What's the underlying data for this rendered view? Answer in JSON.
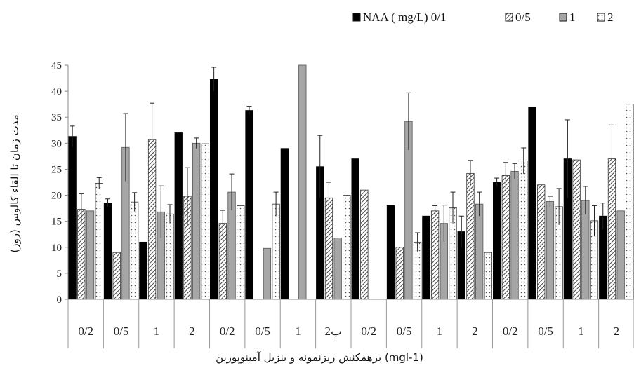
{
  "chart_data": {
    "type": "bar",
    "title": "",
    "ylabel": "مدت زمان تا القاء کالوس (روز)",
    "xlabel": "برهمکنش ریزنمونه و بنزیل آمینوپورین (mgl-1)",
    "ylim": [
      0,
      45
    ],
    "yticks": [
      "0",
      "5",
      "10",
      "15",
      "20",
      "25",
      "30",
      "35",
      "40",
      "45"
    ],
    "categories": [
      "0/2",
      "0/5",
      "1",
      "2",
      "0/2",
      "0/5",
      "1",
      "2ب",
      "0/2",
      "0/5",
      "1",
      "2",
      "0/2",
      "0/5",
      "1",
      "2"
    ],
    "legend_placement": "top-right",
    "legend_title": "NAA ( mg/L)",
    "series": [
      {
        "name": "0/1",
        "values": [
          31.3,
          18.5,
          11,
          32,
          42.3,
          36.3,
          29,
          25.5,
          27,
          18,
          16,
          13,
          22.5,
          37,
          27,
          16
        ]
      },
      {
        "name": "0/5",
        "values": [
          17.3,
          9,
          30.7,
          19.8,
          14.6,
          0,
          0,
          19.5,
          21,
          10,
          17,
          24.2,
          23.8,
          22,
          26.8,
          27
        ]
      },
      {
        "name": "1",
        "values": [
          17,
          29.2,
          16.8,
          30,
          20.6,
          9.8,
          46,
          11.8,
          0,
          34.2,
          14.6,
          18.3,
          24.6,
          18.8,
          19,
          17
        ]
      },
      {
        "name": "2",
        "values": [
          22.3,
          18.7,
          16.4,
          29.9,
          18,
          18.3,
          0,
          20,
          0,
          11,
          17.6,
          9,
          26.6,
          17.8,
          15.1,
          37.5
        ]
      }
    ],
    "errors": [
      [
        2,
        0.8,
        0,
        0,
        2.3,
        0.8,
        0,
        6,
        0,
        0,
        0,
        3,
        0.8,
        0,
        7.5,
        2.5
      ],
      [
        3,
        0,
        7,
        5.5,
        2.5,
        0,
        0,
        3,
        0,
        0,
        1,
        2.5,
        2.5,
        0,
        0,
        6.5
      ],
      [
        0,
        6.5,
        5,
        1,
        3.5,
        0,
        0,
        0,
        0,
        5.5,
        3.5,
        2.3,
        1.5,
        1,
        2.7,
        0
      ],
      [
        1.1,
        1.8,
        1.8,
        0,
        0,
        2.3,
        0,
        0,
        0,
        1.8,
        3,
        0,
        2.5,
        3.5,
        2.9,
        0
      ]
    ],
    "colors": [
      "#000000",
      "#bdbdbd",
      "#a6a6a6",
      "#ffffff"
    ],
    "grid": false
  }
}
